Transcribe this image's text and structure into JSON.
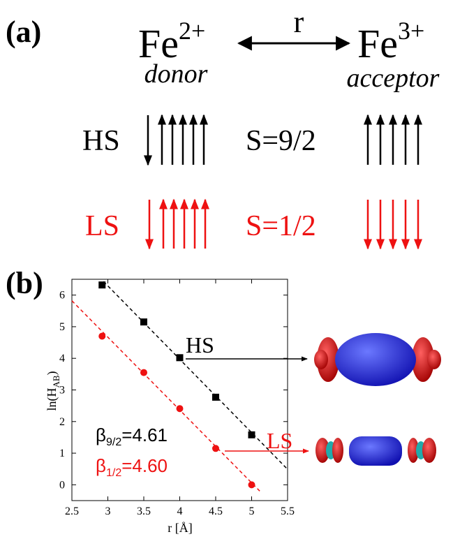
{
  "panel_a": {
    "label": "(a)",
    "donor_ion": "Fe",
    "donor_charge": "2+",
    "acceptor_ion": "Fe",
    "acceptor_charge": "3+",
    "distance": "r",
    "donor": "donor",
    "acceptor": "acceptor",
    "hs_label": "HS",
    "hs_spin": "S=9/2",
    "ls_label": "LS",
    "ls_spin": "S=1/2"
  },
  "chart_data": {
    "type": "scatter",
    "panel_label": "(b)",
    "x_label": "r [Å]",
    "y_label": {
      "base": "ln(H",
      "sub": "AB",
      "close": ")"
    },
    "xlim": [
      2.5,
      5.5
    ],
    "xticks": [
      2.5,
      3,
      3.5,
      4,
      4.5,
      5,
      5.5
    ],
    "ylim": [
      -0.5,
      6.5
    ],
    "yticks": [
      0,
      1,
      2,
      3,
      4,
      5,
      6
    ],
    "series": [
      {
        "name": "HS",
        "color": "#000000",
        "marker": "square",
        "x": [
          2.92,
          3.5,
          4.0,
          4.5,
          5.0
        ],
        "values": [
          6.32,
          5.15,
          4.02,
          2.77,
          1.58
        ],
        "fit": {
          "x": [
            2.94,
            5.5
          ],
          "y": [
            6.43,
            0.49
          ]
        }
      },
      {
        "name": "LS",
        "color": "#ee1111",
        "marker": "circle",
        "x": [
          2.92,
          3.5,
          4.0,
          4.5,
          5.0
        ],
        "values": [
          4.7,
          3.55,
          2.41,
          1.15,
          0.0
        ],
        "fit": {
          "x": [
            2.5,
            5.14
          ],
          "y": [
            5.82,
            -0.26
          ]
        }
      }
    ],
    "annotations": [
      {
        "symbol": "β",
        "sub": "9/2",
        "text": "=4.61",
        "color": "#000000"
      },
      {
        "symbol": "β",
        "sub": "1/2",
        "text": "=4.60",
        "color": "#ee1111"
      }
    ]
  }
}
